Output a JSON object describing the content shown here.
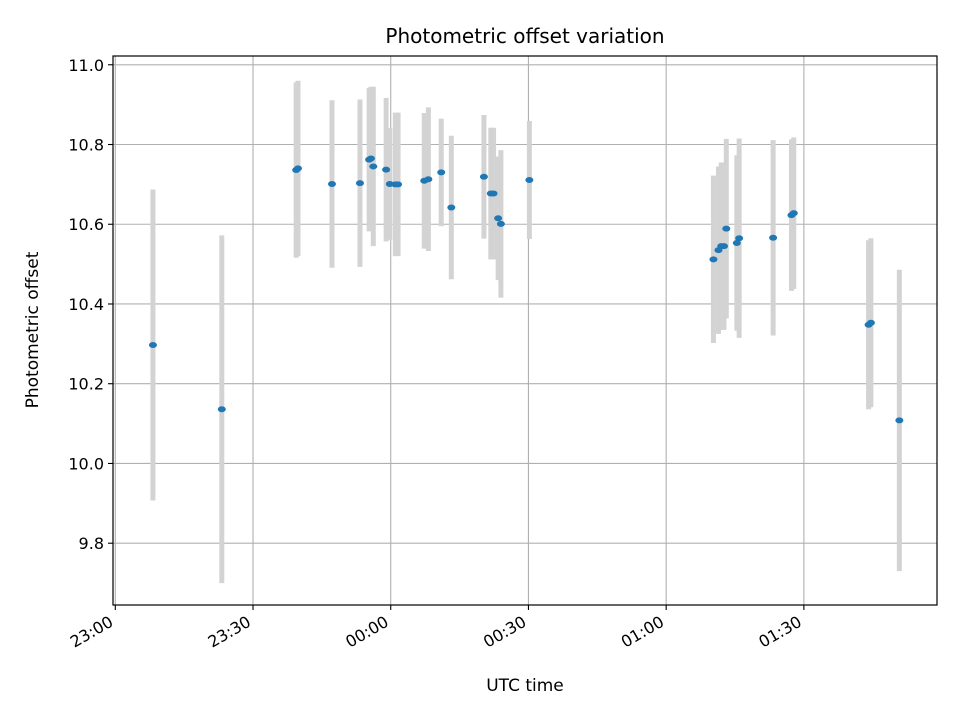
{
  "chart_data": {
    "type": "scatter",
    "title": "Photometric offset variation",
    "xlabel": "UTC time",
    "ylabel": "Photometric offset",
    "x_unit": "minutes after 23:00 UTC",
    "xlim": [
      -0.5,
      179
    ],
    "ylim": [
      9.645,
      11.022
    ],
    "grid": true,
    "x_ticks": [
      {
        "value": 0,
        "label": "23:00"
      },
      {
        "value": 30,
        "label": "23:30"
      },
      {
        "value": 60,
        "label": "00:00"
      },
      {
        "value": 90,
        "label": "00:30"
      },
      {
        "value": 120,
        "label": "01:00"
      },
      {
        "value": 150,
        "label": "01:30"
      }
    ],
    "y_ticks": [
      {
        "value": 9.8,
        "label": "9.8"
      },
      {
        "value": 10.0,
        "label": "10.0"
      },
      {
        "value": 10.2,
        "label": "10.2"
      },
      {
        "value": 10.4,
        "label": "10.4"
      },
      {
        "value": 10.6,
        "label": "10.6"
      },
      {
        "value": 10.8,
        "label": "10.8"
      },
      {
        "value": 11.0,
        "label": "11.0"
      }
    ],
    "marker_color": "#1f77b4",
    "errorbar_color": "#d3d3d3",
    "series": [
      {
        "points": [
          {
            "x": 8.2,
            "y": 10.297,
            "yerr": 0.39
          },
          {
            "x": 23.2,
            "y": 10.136,
            "yerr": 0.436
          },
          {
            "x": 39.4,
            "y": 10.736,
            "yerr": 0.22
          },
          {
            "x": 39.8,
            "y": 10.74,
            "yerr": 0.22
          },
          {
            "x": 47.2,
            "y": 10.701,
            "yerr": 0.21
          },
          {
            "x": 53.3,
            "y": 10.703,
            "yerr": 0.21
          },
          {
            "x": 55.3,
            "y": 10.762,
            "yerr": 0.18
          },
          {
            "x": 55.7,
            "y": 10.765,
            "yerr": 0.18
          },
          {
            "x": 56.2,
            "y": 10.745,
            "yerr": 0.2
          },
          {
            "x": 59.0,
            "y": 10.737,
            "yerr": 0.18
          },
          {
            "x": 59.8,
            "y": 10.701,
            "yerr": 0.14
          },
          {
            "x": 61.0,
            "y": 10.7,
            "yerr": 0.18
          },
          {
            "x": 61.6,
            "y": 10.7,
            "yerr": 0.18
          },
          {
            "x": 67.3,
            "y": 10.709,
            "yerr": 0.17
          },
          {
            "x": 68.2,
            "y": 10.713,
            "yerr": 0.18
          },
          {
            "x": 71.0,
            "y": 10.73,
            "yerr": 0.135
          },
          {
            "x": 73.2,
            "y": 10.642,
            "yerr": 0.18
          },
          {
            "x": 80.3,
            "y": 10.719,
            "yerr": 0.155
          },
          {
            "x": 81.8,
            "y": 10.677,
            "yerr": 0.165
          },
          {
            "x": 82.4,
            "y": 10.677,
            "yerr": 0.165
          },
          {
            "x": 83.4,
            "y": 10.615,
            "yerr": 0.155
          },
          {
            "x": 84.0,
            "y": 10.601,
            "yerr": 0.185
          },
          {
            "x": 90.2,
            "y": 10.711,
            "yerr": 0.148
          },
          {
            "x": 130.3,
            "y": 10.512,
            "yerr": 0.21
          },
          {
            "x": 131.4,
            "y": 10.535,
            "yerr": 0.21
          },
          {
            "x": 132.0,
            "y": 10.545,
            "yerr": 0.21
          },
          {
            "x": 132.6,
            "y": 10.545,
            "yerr": 0.21
          },
          {
            "x": 133.1,
            "y": 10.589,
            "yerr": 0.225
          },
          {
            "x": 135.4,
            "y": 10.553,
            "yerr": 0.22
          },
          {
            "x": 135.9,
            "y": 10.565,
            "yerr": 0.25
          },
          {
            "x": 143.3,
            "y": 10.566,
            "yerr": 0.245
          },
          {
            "x": 147.3,
            "y": 10.623,
            "yerr": 0.19
          },
          {
            "x": 147.8,
            "y": 10.628,
            "yerr": 0.19
          },
          {
            "x": 164.1,
            "y": 10.348,
            "yerr": 0.212
          },
          {
            "x": 164.6,
            "y": 10.353,
            "yerr": 0.212
          },
          {
            "x": 170.8,
            "y": 10.108,
            "yerr": 0.378
          }
        ]
      }
    ]
  }
}
